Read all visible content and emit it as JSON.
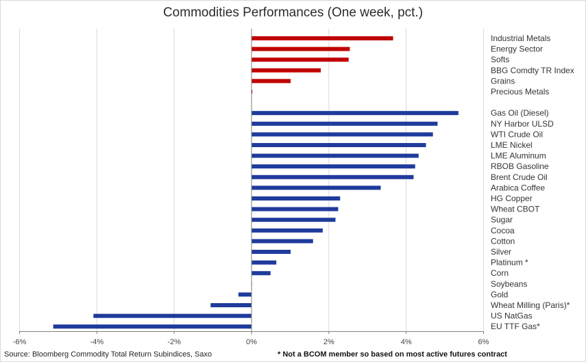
{
  "title": "Commodities Performances (One week, pct.)",
  "footer": {
    "source": "Source: Bloomberg Commodity Total Return Subindices, Saxo",
    "note": "* Not a BCOM member so based on most active futures contract"
  },
  "colors": {
    "sector": "#c00000",
    "commodity": "#1f3b9c",
    "grid": "#d9d9d9",
    "axis": "#7f7f7f"
  },
  "chart_data": {
    "type": "bar",
    "orientation": "horizontal",
    "xlim": [
      -6,
      6
    ],
    "xticks": [
      "-6%",
      "-4%",
      "-2%",
      "0%",
      "2%",
      "4%",
      "6%"
    ],
    "grid": true,
    "series": [
      {
        "group": "sector",
        "categories": [
          "Industrial Metals",
          "Energy Sector",
          "Softs",
          "BBG Comdty TR Index",
          "Grains",
          "Precious Metals"
        ],
        "values": [
          3.67,
          2.55,
          2.52,
          1.8,
          1.02,
          0.03
        ]
      },
      {
        "group": "commodity",
        "categories": [
          "Gas Oil (Diesel)",
          "NY Harbor ULSD",
          "WTI Crude Oil",
          "LME Nickel",
          "LME Aluminum",
          "RBOB Gasoline",
          "Brent Crude Oil",
          "Arabica Coffee",
          "HG Copper",
          "Wheat CBOT",
          "Sugar",
          "Cocoa",
          "Cotton",
          "Silver",
          "Platinum *",
          "Corn",
          "Soybeans",
          "Gold",
          "Wheat Milling (Paris)*",
          "US NatGas",
          "EU TTF Gas*"
        ],
        "values": [
          5.36,
          4.82,
          4.7,
          4.52,
          4.33,
          4.24,
          4.2,
          3.35,
          2.3,
          2.25,
          2.18,
          1.85,
          1.6,
          1.02,
          0.65,
          0.5,
          0.02,
          -0.33,
          -1.05,
          -4.08,
          -5.12
        ]
      }
    ]
  }
}
